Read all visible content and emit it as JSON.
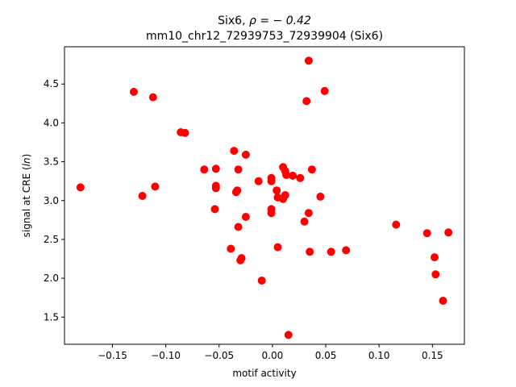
{
  "chart_data": {
    "type": "scatter",
    "title_line1_prefix": "Six6, ",
    "title_line1_math": "ρ = − 0.42",
    "title_line2": "mm10_chr12_72939753_72939904 (Six6)",
    "xlabel": "motif activity",
    "ylabel_prefix": "signal at CRE (",
    "ylabel_math": "ln",
    "ylabel_suffix": ")",
    "xlim": [
      -0.195,
      0.18
    ],
    "ylim": [
      1.15,
      4.98
    ],
    "xticks": [
      -0.15,
      -0.1,
      -0.05,
      0.0,
      0.05,
      0.1,
      0.15
    ],
    "xtick_labels": [
      "−0.15",
      "−0.10",
      "−0.05",
      "0.00",
      "0.05",
      "0.10",
      "0.15"
    ],
    "yticks": [
      1.5,
      2.0,
      2.5,
      3.0,
      3.5,
      4.0,
      4.5
    ],
    "ytick_labels": [
      "1.5",
      "2.0",
      "2.5",
      "3.0",
      "3.5",
      "4.0",
      "4.5"
    ],
    "grid": false,
    "marker_color": "#ff0000",
    "points": [
      {
        "x": -0.18,
        "y": 3.17
      },
      {
        "x": -0.13,
        "y": 4.4
      },
      {
        "x": -0.122,
        "y": 3.06
      },
      {
        "x": -0.112,
        "y": 4.33
      },
      {
        "x": -0.11,
        "y": 3.18
      },
      {
        "x": -0.086,
        "y": 3.88
      },
      {
        "x": -0.082,
        "y": 3.87
      },
      {
        "x": -0.064,
        "y": 3.4
      },
      {
        "x": -0.053,
        "y": 3.41
      },
      {
        "x": -0.053,
        "y": 3.19
      },
      {
        "x": -0.053,
        "y": 3.16
      },
      {
        "x": -0.054,
        "y": 2.89
      },
      {
        "x": -0.036,
        "y": 3.64
      },
      {
        "x": -0.034,
        "y": 3.11
      },
      {
        "x": -0.033,
        "y": 3.13
      },
      {
        "x": -0.032,
        "y": 3.4
      },
      {
        "x": -0.032,
        "y": 2.66
      },
      {
        "x": -0.039,
        "y": 2.38
      },
      {
        "x": -0.025,
        "y": 3.59
      },
      {
        "x": -0.025,
        "y": 2.79
      },
      {
        "x": -0.029,
        "y": 2.26
      },
      {
        "x": -0.03,
        "y": 2.23
      },
      {
        "x": -0.013,
        "y": 3.25
      },
      {
        "x": -0.01,
        "y": 1.97
      },
      {
        "x": -0.001,
        "y": 3.29
      },
      {
        "x": -0.001,
        "y": 3.25
      },
      {
        "x": -0.001,
        "y": 2.89
      },
      {
        "x": -0.001,
        "y": 2.84
      },
      {
        "x": 0.004,
        "y": 3.13
      },
      {
        "x": 0.005,
        "y": 3.04
      },
      {
        "x": 0.005,
        "y": 2.4
      },
      {
        "x": 0.01,
        "y": 3.43
      },
      {
        "x": 0.012,
        "y": 3.38
      },
      {
        "x": 0.013,
        "y": 3.33
      },
      {
        "x": 0.012,
        "y": 3.07
      },
      {
        "x": 0.01,
        "y": 3.02
      },
      {
        "x": 0.019,
        "y": 3.32
      },
      {
        "x": 0.015,
        "y": 1.27
      },
      {
        "x": 0.026,
        "y": 3.29
      },
      {
        "x": 0.03,
        "y": 2.73
      },
      {
        "x": 0.032,
        "y": 4.28
      },
      {
        "x": 0.034,
        "y": 4.8
      },
      {
        "x": 0.034,
        "y": 2.84
      },
      {
        "x": 0.035,
        "y": 2.34
      },
      {
        "x": 0.037,
        "y": 3.4
      },
      {
        "x": 0.045,
        "y": 3.05
      },
      {
        "x": 0.049,
        "y": 4.41
      },
      {
        "x": 0.055,
        "y": 2.34
      },
      {
        "x": 0.069,
        "y": 2.36
      },
      {
        "x": 0.116,
        "y": 2.69
      },
      {
        "x": 0.145,
        "y": 2.58
      },
      {
        "x": 0.152,
        "y": 2.27
      },
      {
        "x": 0.153,
        "y": 2.05
      },
      {
        "x": 0.16,
        "y": 1.71
      },
      {
        "x": 0.165,
        "y": 2.59
      }
    ]
  }
}
